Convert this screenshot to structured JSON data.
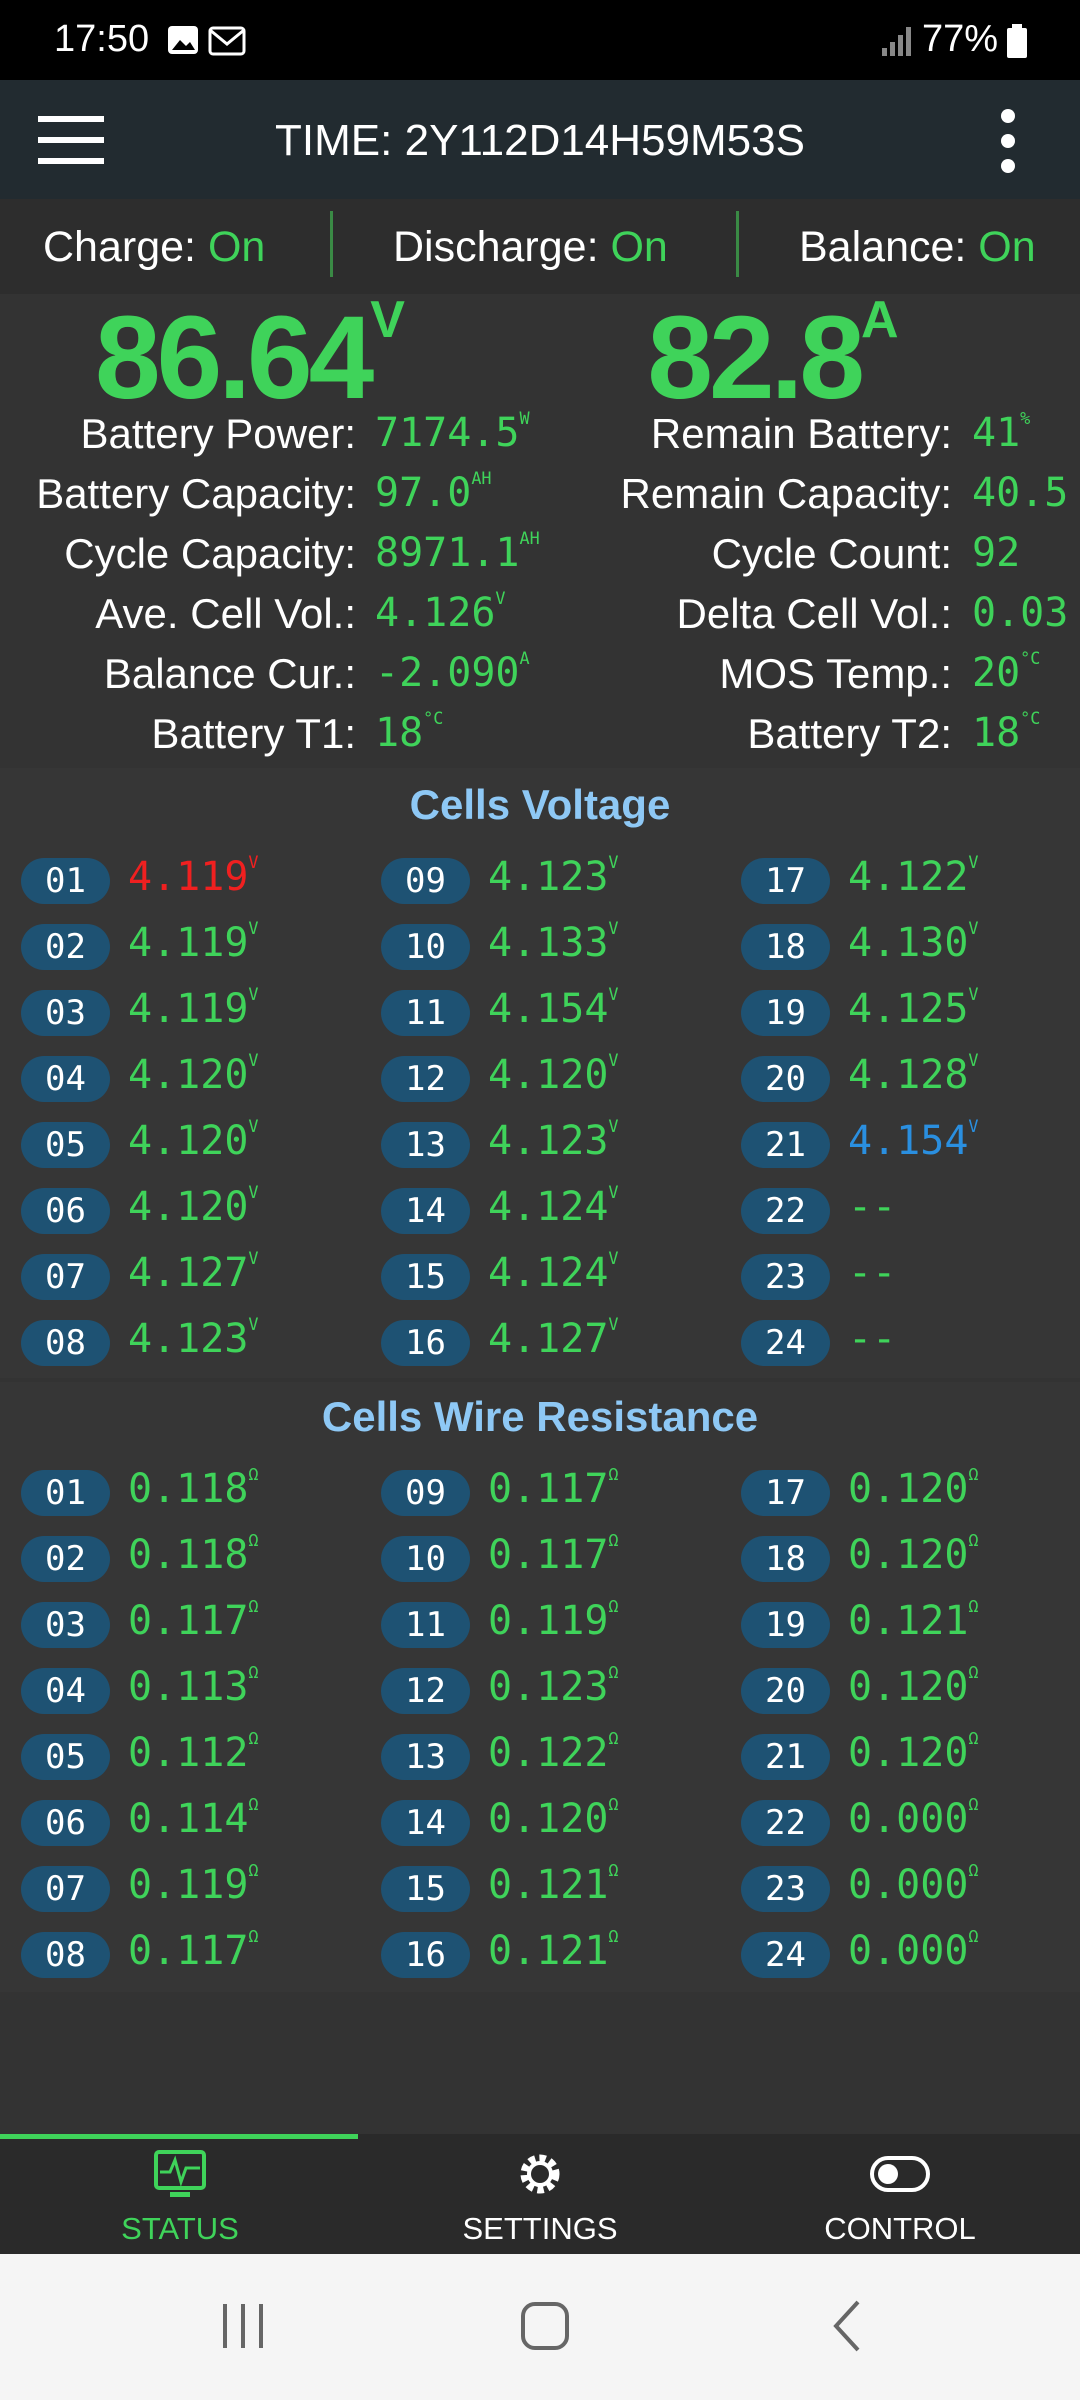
{
  "status_bar": {
    "time": "17:50",
    "battery": "77%"
  },
  "header": {
    "title": "TIME: 2Y112D14H59M53S"
  },
  "switches": [
    {
      "label": "Charge:",
      "state": "On"
    },
    {
      "label": "Discharge:",
      "state": "On"
    },
    {
      "label": "Balance:",
      "state": "On"
    }
  ],
  "main": {
    "voltage": {
      "value": "86.64",
      "unit": "V"
    },
    "current": {
      "value": "82.8",
      "unit": "A"
    }
  },
  "stats": {
    "left": [
      {
        "label": "Battery Power:",
        "value": "7174.5",
        "unit": "W"
      },
      {
        "label": "Battery Capacity:",
        "value": "97.0",
        "unit": "AH"
      },
      {
        "label": "Cycle Capacity:",
        "value": "8971.1",
        "unit": "AH"
      },
      {
        "label": "Ave. Cell Vol.:",
        "value": "4.126",
        "unit": "V"
      },
      {
        "label": "Balance Cur.:",
        "value": "-2.090",
        "unit": "A"
      },
      {
        "label": "Battery T1:",
        "value": "18",
        "unit": "°C"
      }
    ],
    "right": [
      {
        "label": "Remain Battery:",
        "value": "41",
        "unit": "%"
      },
      {
        "label": "Remain Capacity:",
        "value": "40.5"
      },
      {
        "label": "Cycle Count:",
        "value": "92"
      },
      {
        "label": "Delta Cell Vol.:",
        "value": "0.03"
      },
      {
        "label": "MOS Temp.:",
        "value": "20",
        "unit": "°C"
      },
      {
        "label": "Battery T2:",
        "value": "18",
        "unit": "°C"
      }
    ]
  },
  "cells_voltage": {
    "title": "Cells Voltage",
    "cells": [
      {
        "id": "01",
        "value": "4.119",
        "unit": "V",
        "color": "#f02020"
      },
      {
        "id": "02",
        "value": "4.119",
        "unit": "V"
      },
      {
        "id": "03",
        "value": "4.119",
        "unit": "V"
      },
      {
        "id": "04",
        "value": "4.120",
        "unit": "V"
      },
      {
        "id": "05",
        "value": "4.120",
        "unit": "V"
      },
      {
        "id": "06",
        "value": "4.120",
        "unit": "V"
      },
      {
        "id": "07",
        "value": "4.127",
        "unit": "V"
      },
      {
        "id": "08",
        "value": "4.123",
        "unit": "V"
      },
      {
        "id": "09",
        "value": "4.123",
        "unit": "V"
      },
      {
        "id": "10",
        "value": "4.133",
        "unit": "V"
      },
      {
        "id": "11",
        "value": "4.154",
        "unit": "V"
      },
      {
        "id": "12",
        "value": "4.120",
        "unit": "V"
      },
      {
        "id": "13",
        "value": "4.123",
        "unit": "V"
      },
      {
        "id": "14",
        "value": "4.124",
        "unit": "V"
      },
      {
        "id": "15",
        "value": "4.124",
        "unit": "V"
      },
      {
        "id": "16",
        "value": "4.127",
        "unit": "V"
      },
      {
        "id": "17",
        "value": "4.122",
        "unit": "V"
      },
      {
        "id": "18",
        "value": "4.130",
        "unit": "V"
      },
      {
        "id": "19",
        "value": "4.125",
        "unit": "V"
      },
      {
        "id": "20",
        "value": "4.128",
        "unit": "V"
      },
      {
        "id": "21",
        "value": "4.154",
        "unit": "V",
        "color": "#2a8fe0"
      },
      {
        "id": "22",
        "value": "--"
      },
      {
        "id": "23",
        "value": "--"
      },
      {
        "id": "24",
        "value": "--"
      }
    ]
  },
  "cells_resistance": {
    "title": "Cells Wire Resistance",
    "cells": [
      {
        "id": "01",
        "value": "0.118",
        "unit": "Ω"
      },
      {
        "id": "02",
        "value": "0.118",
        "unit": "Ω"
      },
      {
        "id": "03",
        "value": "0.117",
        "unit": "Ω"
      },
      {
        "id": "04",
        "value": "0.113",
        "unit": "Ω"
      },
      {
        "id": "05",
        "value": "0.112",
        "unit": "Ω"
      },
      {
        "id": "06",
        "value": "0.114",
        "unit": "Ω"
      },
      {
        "id": "07",
        "value": "0.119",
        "unit": "Ω"
      },
      {
        "id": "08",
        "value": "0.117",
        "unit": "Ω"
      },
      {
        "id": "09",
        "value": "0.117",
        "unit": "Ω"
      },
      {
        "id": "10",
        "value": "0.117",
        "unit": "Ω"
      },
      {
        "id": "11",
        "value": "0.119",
        "unit": "Ω"
      },
      {
        "id": "12",
        "value": "0.123",
        "unit": "Ω"
      },
      {
        "id": "13",
        "value": "0.122",
        "unit": "Ω"
      },
      {
        "id": "14",
        "value": "0.120",
        "unit": "Ω"
      },
      {
        "id": "15",
        "value": "0.121",
        "unit": "Ω"
      },
      {
        "id": "16",
        "value": "0.121",
        "unit": "Ω"
      },
      {
        "id": "17",
        "value": "0.120",
        "unit": "Ω"
      },
      {
        "id": "18",
        "value": "0.120",
        "unit": "Ω"
      },
      {
        "id": "19",
        "value": "0.121",
        "unit": "Ω"
      },
      {
        "id": "20",
        "value": "0.120",
        "unit": "Ω"
      },
      {
        "id": "21",
        "value": "0.120",
        "unit": "Ω"
      },
      {
        "id": "22",
        "value": "0.000",
        "unit": "Ω"
      },
      {
        "id": "23",
        "value": "0.000",
        "unit": "Ω"
      },
      {
        "id": "24",
        "value": "0.000",
        "unit": "Ω"
      }
    ]
  },
  "nav": {
    "tabs": [
      "STATUS",
      "SETTINGS",
      "CONTROL"
    ],
    "active": 0
  }
}
